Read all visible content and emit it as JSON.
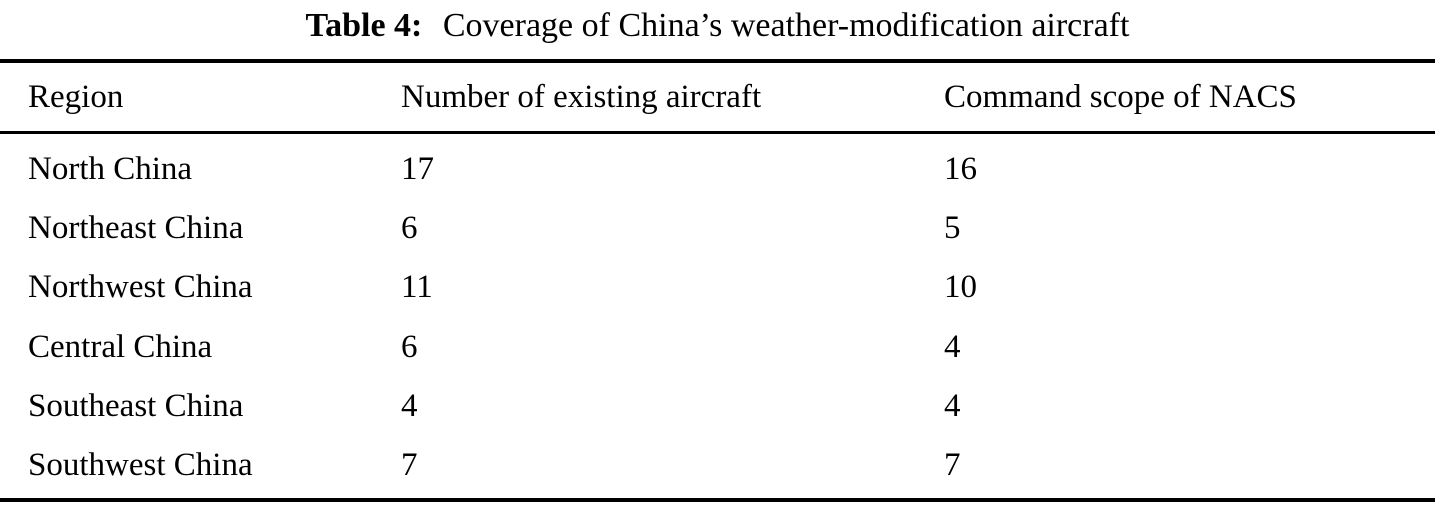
{
  "title": {
    "label": "Table 4:",
    "caption": "Coverage of China’s weather-modification aircraft"
  },
  "table": {
    "columns": {
      "region": "Region",
      "existing": "Number of existing aircraft",
      "nacs": "Command scope of NACS"
    },
    "rows": [
      {
        "region": "North China",
        "existing": "17",
        "nacs": "16"
      },
      {
        "region": "Northeast China",
        "existing": "6",
        "nacs": "5"
      },
      {
        "region": "Northwest China",
        "existing": "11",
        "nacs": "10"
      },
      {
        "region": "Central China",
        "existing": "6",
        "nacs": "4"
      },
      {
        "region": "Southeast China",
        "existing": "4",
        "nacs": "4"
      },
      {
        "region": "Southwest China",
        "existing": "7",
        "nacs": "7"
      }
    ]
  },
  "colors": {
    "text": "#000000",
    "background": "#ffffff",
    "rule": "#000000"
  },
  "chart_data": {
    "type": "table",
    "title": "Table 4: Coverage of China’s weather-modification aircraft",
    "columns": [
      "Region",
      "Number of existing aircraft",
      "Command scope of NACS"
    ],
    "rows": [
      [
        "North China",
        17,
        16
      ],
      [
        "Northeast China",
        6,
        5
      ],
      [
        "Northwest China",
        11,
        10
      ],
      [
        "Central China",
        6,
        4
      ],
      [
        "Southeast China",
        4,
        4
      ],
      [
        "Southwest China",
        7,
        7
      ]
    ]
  }
}
